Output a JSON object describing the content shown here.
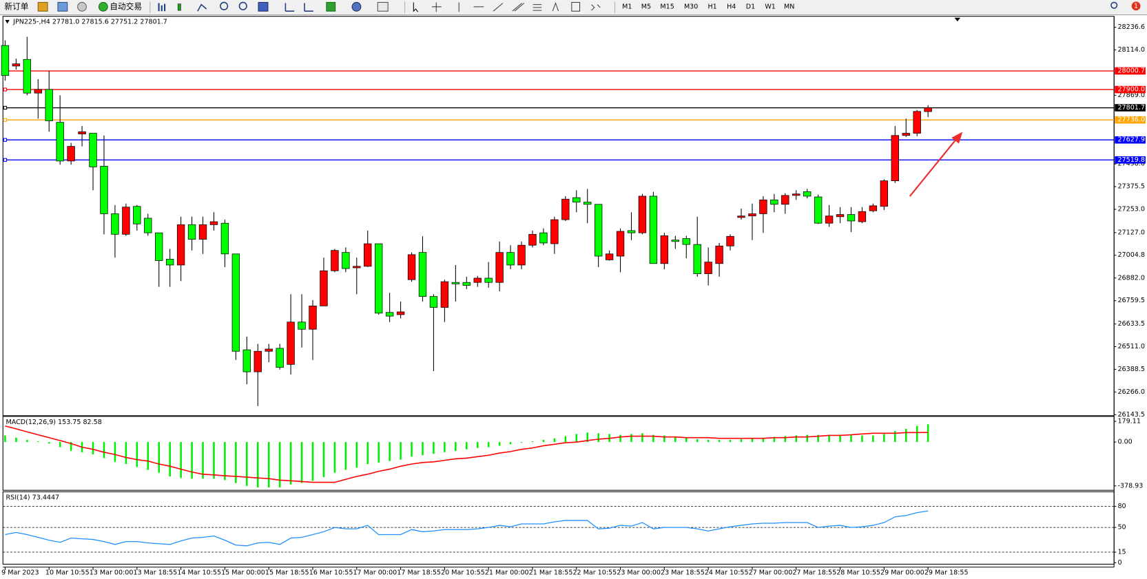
{
  "toolbar": {
    "new_order": "新订单",
    "auto_trading": "自动交易",
    "timeframes": [
      "M1",
      "M5",
      "M15",
      "M30",
      "H1",
      "H4",
      "D1",
      "W1",
      "MN"
    ],
    "notifications": "1"
  },
  "chart_data": [
    {
      "type": "candlestick",
      "title": "JPN225-,H4  27781.0 27815.6 27751.2 27801.7",
      "categories": [
        "9 Mar 2023",
        null,
        null,
        null,
        "10 Mar 10:55",
        null,
        null,
        null,
        "13 Mar 00:00",
        null,
        null,
        null,
        "13 Mar 18:55",
        null,
        null,
        null,
        "14 Mar 10:55",
        null,
        null,
        null,
        "15 Mar 00:00",
        null,
        null,
        null,
        "15 Mar 18:55",
        null,
        null,
        null,
        "16 Mar 10:55",
        null,
        null,
        null,
        "17 Mar 00:00",
        null,
        null,
        null,
        "17 Mar 18:55",
        null,
        null,
        null,
        "20 Mar 10:55",
        null,
        null,
        null,
        "21 Mar 00:00",
        null,
        null,
        null,
        "21 Mar 18:55",
        null,
        null,
        null,
        "22 Mar 10:55",
        null,
        null,
        null,
        "23 Mar 00:00",
        null,
        null,
        null,
        "23 Mar 18:55",
        null,
        null,
        null,
        "24 Mar 10:55",
        null,
        null,
        null,
        "27 Mar 00:00",
        null,
        null,
        null,
        "27 Mar 18:55",
        null,
        null,
        null,
        "28 Mar 10:55",
        null,
        null,
        null,
        "29 Mar 00:00",
        null,
        null,
        null,
        "29 Mar 18:55"
      ],
      "open": [
        28138,
        28027,
        28063,
        27881,
        27901,
        27723,
        27514,
        27660,
        27664,
        27486,
        27229,
        27118,
        27269,
        27205,
        27126,
        26984,
        26952,
        27170,
        27091,
        27170,
        27178,
        27012,
        26494,
        26375,
        26486,
        26502,
        26415,
        26644,
        26605,
        26731,
        26921,
        27020,
        26937,
        26945,
        27067,
        26696,
        26684,
        26873,
        27020,
        26782,
        26723,
        26858,
        26858,
        26858,
        26881,
        26858,
        27020,
        26952,
        27059,
        27126,
        27067,
        27197,
        27316,
        27292,
        27280,
        26980,
        27000,
        27138,
        27126,
        27324,
        26960,
        27087,
        27095,
        27063,
        26905,
        26960,
        27055,
        27209,
        27217,
        27229,
        27304,
        27280,
        27328,
        27348,
        27320,
        27178,
        27213,
        27225,
        27186,
        27245,
        27269,
        27407,
        27652,
        27664,
        27781.0
      ],
      "high": [
        28166,
        28067,
        28185,
        27956,
        28000,
        27869,
        27612,
        27703,
        27664,
        27652,
        27276,
        27284,
        27276,
        27229,
        27126,
        27039,
        27213,
        27213,
        27213,
        27237,
        27197,
        27012,
        26565,
        26526,
        26526,
        26526,
        26794,
        26794,
        26763,
        26992,
        27039,
        27047,
        26992,
        27138,
        27067,
        26802,
        26755,
        27020,
        27107,
        26794,
        26873,
        26952,
        26889,
        26893,
        26968,
        27079,
        27059,
        27079,
        27138,
        27150,
        27213,
        27324,
        27356,
        27363,
        27280,
        27031,
        27150,
        27237,
        27336,
        27348,
        27126,
        27110,
        27110,
        27213,
        27047,
        27071,
        27118,
        27257,
        27284,
        27324,
        27336,
        27340,
        27356,
        27363,
        27332,
        27276,
        27265,
        27265,
        27265,
        27284,
        27415,
        27703,
        27743,
        27790,
        27815.6
      ],
      "low": [
        27948,
        28008,
        27869,
        27743,
        27672,
        27494,
        27494,
        27593,
        27356,
        27118,
        26992,
        27110,
        27138,
        27110,
        26834,
        26834,
        26865,
        27031,
        27012,
        27138,
        26941,
        26439,
        26308,
        26190,
        26427,
        26387,
        26360,
        26506,
        26439,
        26731,
        26913,
        26913,
        26794,
        26941,
        26684,
        26644,
        26664,
        26862,
        26755,
        26379,
        26644,
        26755,
        26822,
        26834,
        26830,
        26810,
        26929,
        26929,
        27047,
        27059,
        27012,
        27190,
        27237,
        27178,
        26941,
        26976,
        26913,
        27087,
        27118,
        26960,
        26929,
        27039,
        26988,
        26889,
        26842,
        26889,
        27031,
        27197,
        27087,
        27126,
        27237,
        27229,
        27304,
        27312,
        27174,
        27158,
        27178,
        27130,
        27178,
        27237,
        27249,
        27395,
        27644,
        27648,
        27751.2
      ],
      "close": [
        27976,
        28039,
        27881,
        27901,
        27731,
        27514,
        27593,
        27672,
        27482,
        27229,
        27118,
        27265,
        27174,
        27126,
        26976,
        26952,
        27170,
        27091,
        27170,
        27186,
        27012,
        26486,
        26375,
        26486,
        26498,
        26399,
        26644,
        26605,
        26731,
        26921,
        27031,
        26933,
        26945,
        27067,
        26692,
        26676,
        26699,
        27008,
        26782,
        26723,
        26862,
        26850,
        26842,
        26881,
        26858,
        27020,
        26952,
        27059,
        27118,
        27071,
        27197,
        27308,
        27292,
        27280,
        27000,
        27012,
        27134,
        27126,
        27324,
        26960,
        27110,
        27079,
        27063,
        26905,
        26968,
        27055,
        27107,
        27217,
        27229,
        27304,
        27280,
        27328,
        27336,
        27324,
        27178,
        27217,
        27225,
        27190,
        27241,
        27272,
        27407,
        27652,
        27664,
        27782,
        27801.7
      ],
      "up_color": "#ff0000",
      "down_color": "#00ff00",
      "price_levels": [
        {
          "value": 28000.7,
          "label": "28000.7",
          "color": "#ff0000"
        },
        {
          "value": 27900.0,
          "label": "27900.0",
          "color": "#ff0000"
        },
        {
          "value": 27801.7,
          "label": "27801.7",
          "color": "#000000"
        },
        {
          "value": 27736.0,
          "label": "27736.0",
          "color": "#ffa500"
        },
        {
          "value": 27627.9,
          "label": "27627.9",
          "color": "#0000ff"
        },
        {
          "value": 27519.8,
          "label": "27519.8",
          "color": "#0000ff"
        }
      ],
      "ylim": [
        26138,
        28288
      ],
      "yticks": [
        28236.6,
        {
          "value": 28114,
          "label": "28114.0"
        },
        {
          "value": 27869,
          "label": "27869.0"
        },
        {
          "value": 27498,
          "label": "27498.0"
        },
        27375.5,
        {
          "value": 27253,
          "label": "27253.0"
        },
        {
          "value": 27127,
          "label": "27127.0"
        },
        27004.8,
        {
          "value": 26882,
          "label": "26882.0"
        },
        26759.5,
        26633.5,
        {
          "value": 26511,
          "label": "26511.0"
        },
        26388.5,
        {
          "value": 26266,
          "label": "26266.0"
        },
        26143.5
      ]
    },
    {
      "type": "macd",
      "title": "MACD(12,26,9) 153.75 82.58",
      "values": [
        57,
        38,
        19,
        6,
        -13,
        -44,
        -76,
        -88,
        -107,
        -139,
        -171,
        -190,
        -215,
        -240,
        -265,
        -297,
        -310,
        -316,
        -316,
        -316,
        -329,
        -354,
        -379,
        -392,
        -392,
        -392,
        -367,
        -354,
        -335,
        -303,
        -265,
        -240,
        -221,
        -190,
        -177,
        -164,
        -152,
        -126,
        -114,
        -101,
        -88,
        -76,
        -63,
        -51,
        -44,
        -32,
        -19,
        -6,
        6,
        19,
        32,
        51,
        70,
        82,
        76,
        70,
        63,
        70,
        76,
        63,
        57,
        44,
        38,
        25,
        19,
        19,
        19,
        25,
        32,
        38,
        44,
        51,
        57,
        63,
        63,
        63,
        63,
        57,
        57,
        57,
        70,
        95,
        114,
        139,
        153.75
      ],
      "signal": [
        139,
        114,
        88,
        63,
        38,
        13,
        -13,
        -44,
        -63,
        -88,
        -107,
        -133,
        -152,
        -164,
        -190,
        -209,
        -234,
        -259,
        -278,
        -284,
        -291,
        -297,
        -303,
        -310,
        -316,
        -329,
        -335,
        -341,
        -348,
        -348,
        -348,
        -322,
        -297,
        -278,
        -253,
        -234,
        -209,
        -190,
        -177,
        -171,
        -158,
        -145,
        -139,
        -126,
        -114,
        -95,
        -82,
        -63,
        -51,
        -32,
        -19,
        -6,
        0,
        13,
        25,
        32,
        44,
        51,
        51,
        51,
        44,
        44,
        38,
        38,
        38,
        32,
        32,
        32,
        32,
        32,
        38,
        38,
        44,
        44,
        51,
        57,
        57,
        63,
        70,
        76,
        76,
        76,
        82,
        82,
        82.58
      ],
      "color": "#00ee00",
      "signal_color": "#ff0000",
      "ylim": [
        -417,
        209
      ],
      "yticks": [
        179.11,
        {
          "value": 0,
          "label": "0.00"
        },
        -378.93
      ]
    },
    {
      "type": "rsi",
      "title": "RSI(14) 73.4447",
      "values": [
        40,
        43,
        40,
        36,
        32,
        29,
        35,
        34,
        33,
        30,
        26,
        30,
        30,
        28,
        27,
        26,
        31,
        35,
        36,
        38,
        32,
        25,
        24,
        28,
        29,
        26,
        35,
        36,
        40,
        44,
        50,
        48,
        48,
        53,
        40,
        40,
        40,
        47,
        44,
        45,
        47,
        47,
        47,
        48,
        50,
        53,
        51,
        55,
        55,
        55,
        58,
        60,
        60,
        60,
        48,
        49,
        53,
        52,
        57,
        48,
        50,
        50,
        50,
        48,
        45,
        48,
        51,
        53,
        55,
        56,
        56,
        57,
        57,
        57,
        50,
        52,
        53,
        50,
        51,
        53,
        57,
        65,
        67,
        71,
        73.4447
      ],
      "color": "#1e90ff",
      "levels": [
        80,
        50,
        15
      ],
      "ylim": [
        -2,
        98.5
      ],
      "yticks": [
        80,
        50,
        15,
        0
      ]
    }
  ]
}
